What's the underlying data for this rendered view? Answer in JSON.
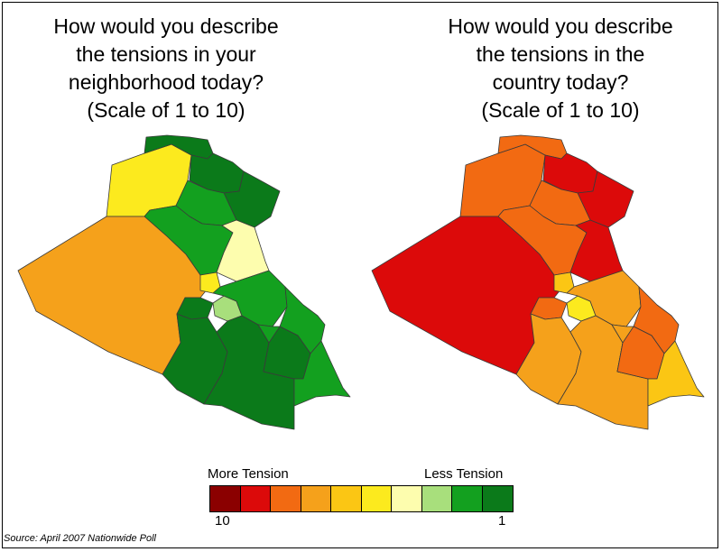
{
  "maps": [
    {
      "title": "How would you describe\nthe tensions in your\nneighborhood today?\n(Scale of 1 to 10)",
      "regions": [
        {
          "name": "north-west",
          "color": "#fcea1e"
        },
        {
          "name": "far-north-top",
          "color": "#0b7a1a"
        },
        {
          "name": "north-east-1",
          "color": "#0b7a1a"
        },
        {
          "name": "north-east-2",
          "color": "#0b7a1a"
        },
        {
          "name": "north-central",
          "color": "#13a01f"
        },
        {
          "name": "central",
          "color": "#13a01f"
        },
        {
          "name": "east-central",
          "color": "#fdfdae"
        },
        {
          "name": "west",
          "color": "#f5a11b"
        },
        {
          "name": "mid-small-1",
          "color": "#fcea1e"
        },
        {
          "name": "mid-small-2",
          "color": "#0b7a1a"
        },
        {
          "name": "baghdad",
          "color": "#a8df7c"
        },
        {
          "name": "mid-east",
          "color": "#13a01f"
        },
        {
          "name": "east-1",
          "color": "#13a01f"
        },
        {
          "name": "south-west",
          "color": "#0b7a1a"
        },
        {
          "name": "south-central",
          "color": "#0b7a1a"
        },
        {
          "name": "south-1",
          "color": "#13a01f"
        },
        {
          "name": "south-2",
          "color": "#0b7a1a"
        },
        {
          "name": "south-east",
          "color": "#13a01f"
        }
      ]
    },
    {
      "title": "How would you describe\nthe tensions in the\ncountry today?\n(Scale of 1 to 10)",
      "regions": [
        {
          "name": "north-west",
          "color": "#f26a12"
        },
        {
          "name": "far-north-top",
          "color": "#f26a12"
        },
        {
          "name": "north-east-1",
          "color": "#dc0a0a"
        },
        {
          "name": "north-east-2",
          "color": "#dc0a0a"
        },
        {
          "name": "north-central",
          "color": "#f26a12"
        },
        {
          "name": "central",
          "color": "#f26a12"
        },
        {
          "name": "east-central",
          "color": "#dc0a0a"
        },
        {
          "name": "west",
          "color": "#dc0a0a"
        },
        {
          "name": "mid-small-1",
          "color": "#fbc614"
        },
        {
          "name": "mid-small-2",
          "color": "#f26a12"
        },
        {
          "name": "baghdad",
          "color": "#fcea1e"
        },
        {
          "name": "mid-east",
          "color": "#f5a11b"
        },
        {
          "name": "east-1",
          "color": "#f26a12"
        },
        {
          "name": "south-west",
          "color": "#f5a11b"
        },
        {
          "name": "south-central",
          "color": "#f5a11b"
        },
        {
          "name": "south-1",
          "color": "#f5a11b"
        },
        {
          "name": "south-2",
          "color": "#f26a12"
        },
        {
          "name": "south-east",
          "color": "#fbc614"
        }
      ]
    }
  ],
  "legend": {
    "more_label": "More Tension",
    "less_label": "Less Tension",
    "min_label": "10",
    "max_label": "1",
    "colors": [
      "#8b0000",
      "#dc0a0a",
      "#f26a12",
      "#f5a11b",
      "#fbc614",
      "#fcea1e",
      "#fdfdae",
      "#a8df7c",
      "#13a01f",
      "#0b7a1a"
    ]
  },
  "source": "Source: April 2007 Nationwide Poll"
}
